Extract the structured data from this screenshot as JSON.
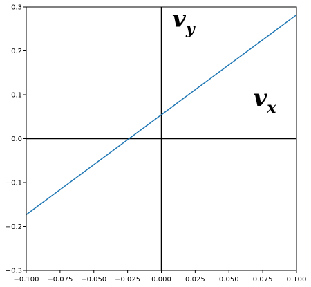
{
  "chart_data": {
    "type": "line",
    "title": "",
    "xlabel": "",
    "ylabel": "",
    "xlim": [
      -0.1,
      0.1
    ],
    "ylim": [
      -0.3,
      0.3
    ],
    "grid": false,
    "x_ticks": [
      -0.1,
      -0.075,
      -0.05,
      -0.025,
      0.0,
      0.025,
      0.05,
      0.075,
      0.1
    ],
    "x_tick_labels": [
      "−0.100",
      "−0.075",
      "−0.050",
      "−0.025",
      "0.000",
      "0.025",
      "0.050",
      "0.075",
      "0.100"
    ],
    "y_ticks": [
      -0.3,
      -0.2,
      -0.1,
      0.0,
      0.1,
      0.2,
      0.3
    ],
    "y_tick_labels": [
      "−0.3",
      "−0.2",
      "−0.1",
      "0.0",
      "0.1",
      "0.2",
      "0.3"
    ],
    "series": [
      {
        "color": "#1f77b4",
        "x": [
          -0.1,
          0.1
        ],
        "y": [
          -0.173,
          0.282
        ]
      }
    ],
    "reference_lines": {
      "x": 0.0,
      "y": 0.0,
      "color": "#000000"
    },
    "annotations": [
      {
        "main": "v",
        "sub": "y",
        "x": 0.008,
        "y": 0.255,
        "size": 34
      },
      {
        "main": "v",
        "sub": "x",
        "x": 0.068,
        "y": 0.075,
        "size": 34
      }
    ]
  }
}
